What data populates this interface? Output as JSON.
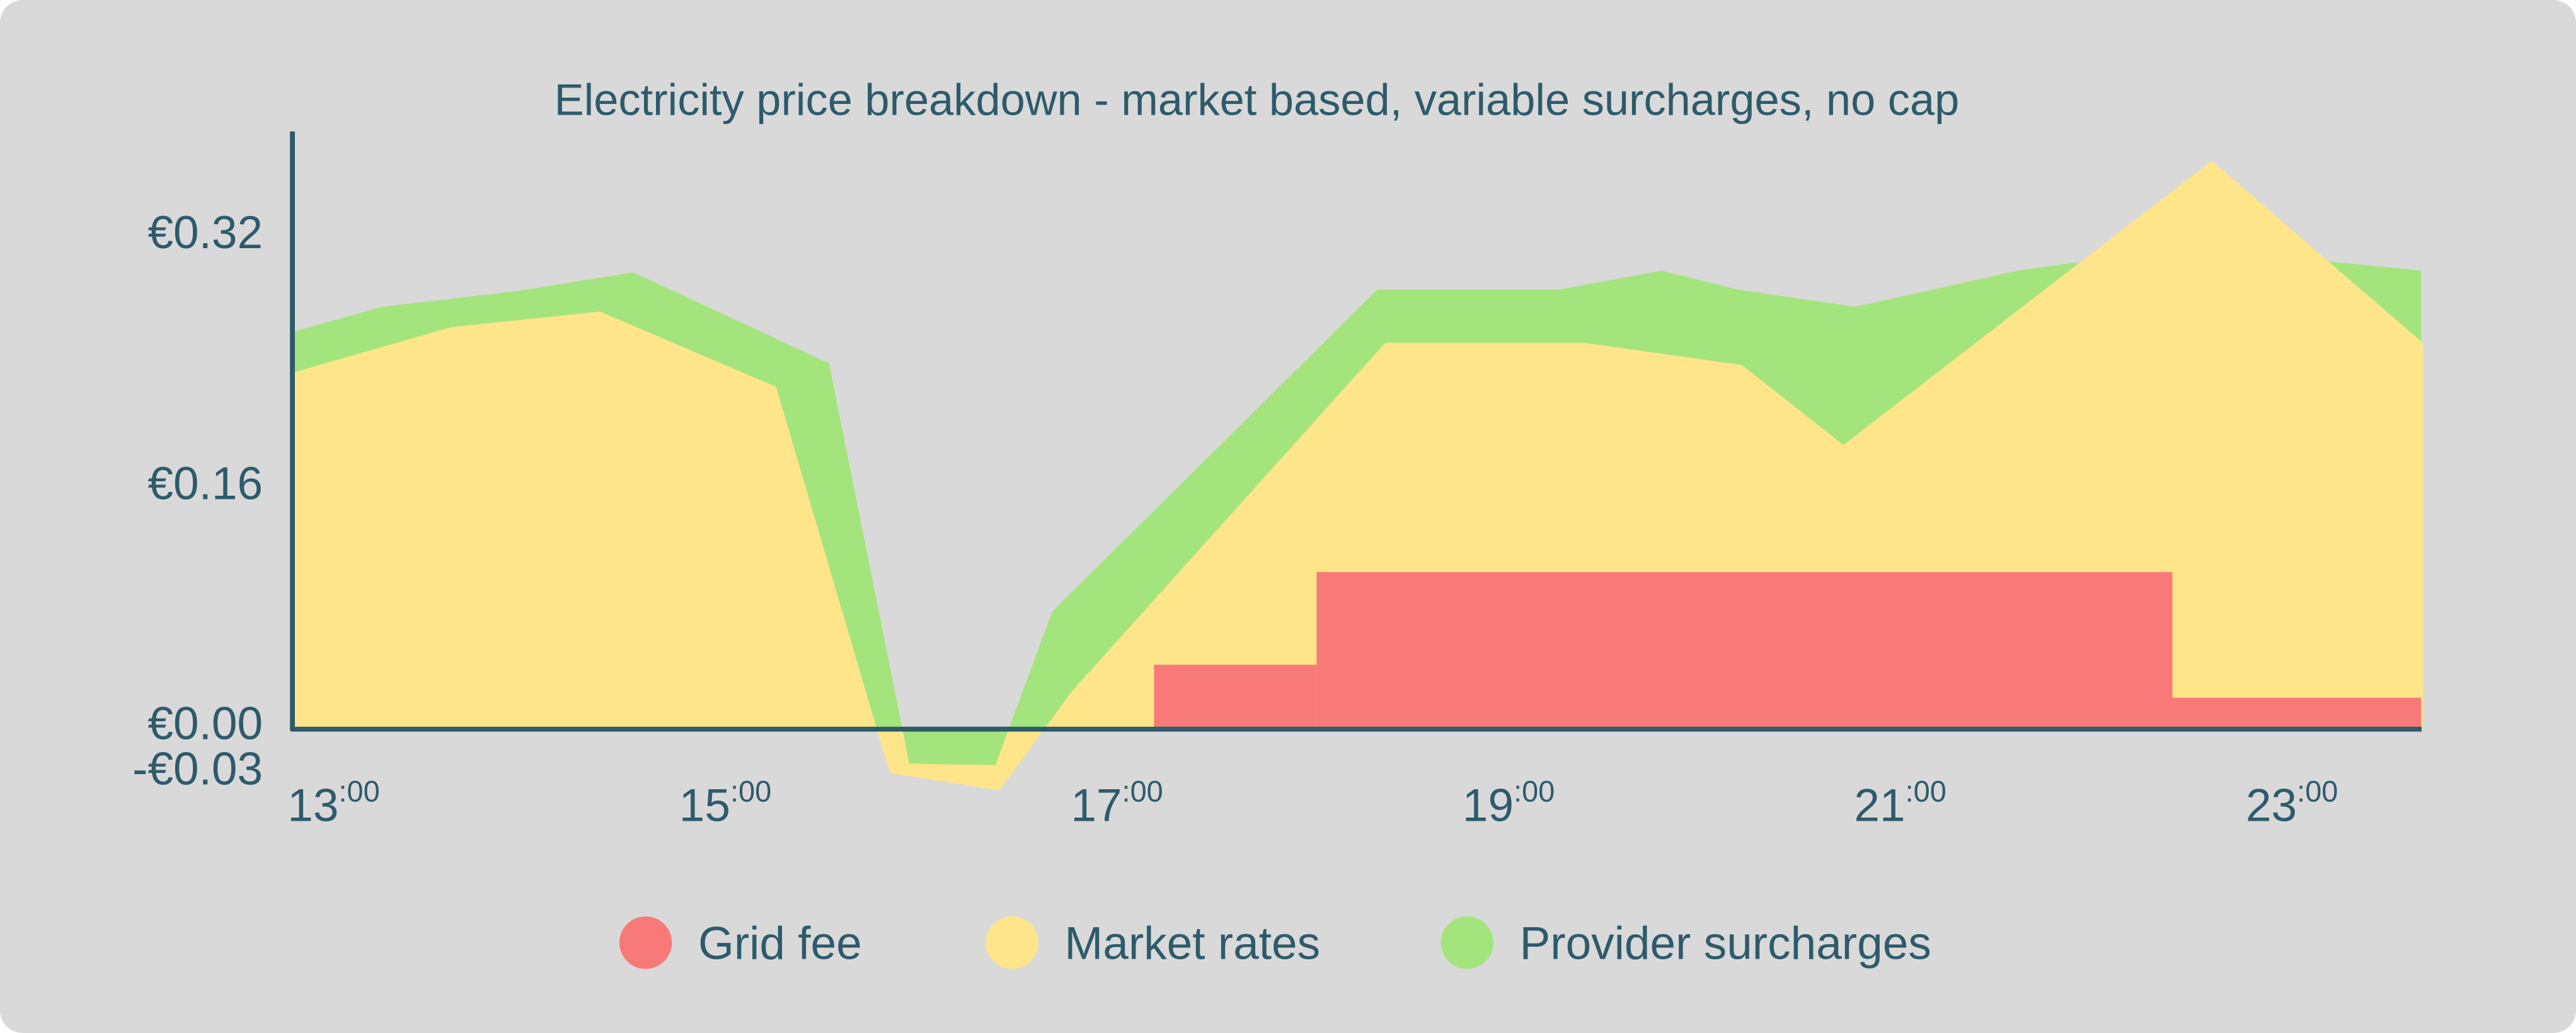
{
  "chart_data": {
    "type": "area",
    "title": "Electricity price breakdown - market based, variable surcharges, no cap",
    "xlabel": "",
    "ylabel": "",
    "xlim": [
      13,
      23.87
    ],
    "ylim": [
      -0.03,
      0.36
    ],
    "x_ticks": [
      {
        "value": 13,
        "hour": "13",
        "minutes": ":00"
      },
      {
        "value": 15,
        "hour": "15",
        "minutes": ":00"
      },
      {
        "value": 17,
        "hour": "17",
        "minutes": ":00"
      },
      {
        "value": 19,
        "hour": "19",
        "minutes": ":00"
      },
      {
        "value": 21,
        "hour": "21",
        "minutes": ":00"
      },
      {
        "value": 23,
        "hour": "23",
        "minutes": ":00"
      }
    ],
    "y_ticks": [
      {
        "value": 0.32,
        "label": "€0.32"
      },
      {
        "value": 0.16,
        "label": "€0.16"
      },
      {
        "value": 0.0,
        "label": "€0.00"
      },
      {
        "value": -0.03,
        "label": "-€0.03"
      }
    ],
    "grid": false,
    "legend_placement": "bottom",
    "series": [
      {
        "name": "Provider surcharges",
        "color": "#a4e47c",
        "points": [
          [
            13.0,
            0.252
          ],
          [
            13.46,
            0.268
          ],
          [
            14.15,
            0.278
          ],
          [
            14.74,
            0.29
          ],
          [
            15.74,
            0.232
          ],
          [
            16.15,
            -0.023
          ],
          [
            16.59,
            -0.024
          ],
          [
            16.88,
            0.074
          ],
          [
            18.54,
            0.279
          ],
          [
            19.47,
            0.279
          ],
          [
            19.99,
            0.291
          ],
          [
            20.38,
            0.279
          ],
          [
            20.98,
            0.268
          ],
          [
            21.81,
            0.291
          ],
          [
            22.09,
            0.296
          ],
          [
            23.39,
            0.297
          ],
          [
            23.87,
            0.291
          ]
        ]
      },
      {
        "name": "Market rates",
        "color": "#ffe58a",
        "points": [
          [
            13.0,
            0.226
          ],
          [
            13.81,
            0.255
          ],
          [
            14.57,
            0.265
          ],
          [
            15.47,
            0.217
          ],
          [
            16.05,
            -0.029
          ],
          [
            16.61,
            -0.04
          ],
          [
            16.98,
            0.023
          ],
          [
            18.58,
            0.245
          ],
          [
            19.6,
            0.245
          ],
          [
            20.4,
            0.231
          ],
          [
            20.92,
            0.18
          ],
          [
            22.8,
            0.361
          ],
          [
            23.88,
            0.245
          ]
        ]
      },
      {
        "name": "Grid fee",
        "color": "#f87a78",
        "steps": [
          [
            17.4,
            18.23,
            0.04
          ],
          [
            18.23,
            22.6,
            0.099
          ],
          [
            22.6,
            23.87,
            0.019
          ]
        ]
      }
    ],
    "legend": [
      {
        "label": "Grid fee",
        "color": "#f87a78"
      },
      {
        "label": "Market rates",
        "color": "#ffe58a"
      },
      {
        "label": "Provider surcharges",
        "color": "#a4e47c"
      }
    ]
  },
  "colors": {
    "background": "#d9d9d9",
    "text": "#2e5b6b",
    "axis": "#2e5b6b"
  }
}
